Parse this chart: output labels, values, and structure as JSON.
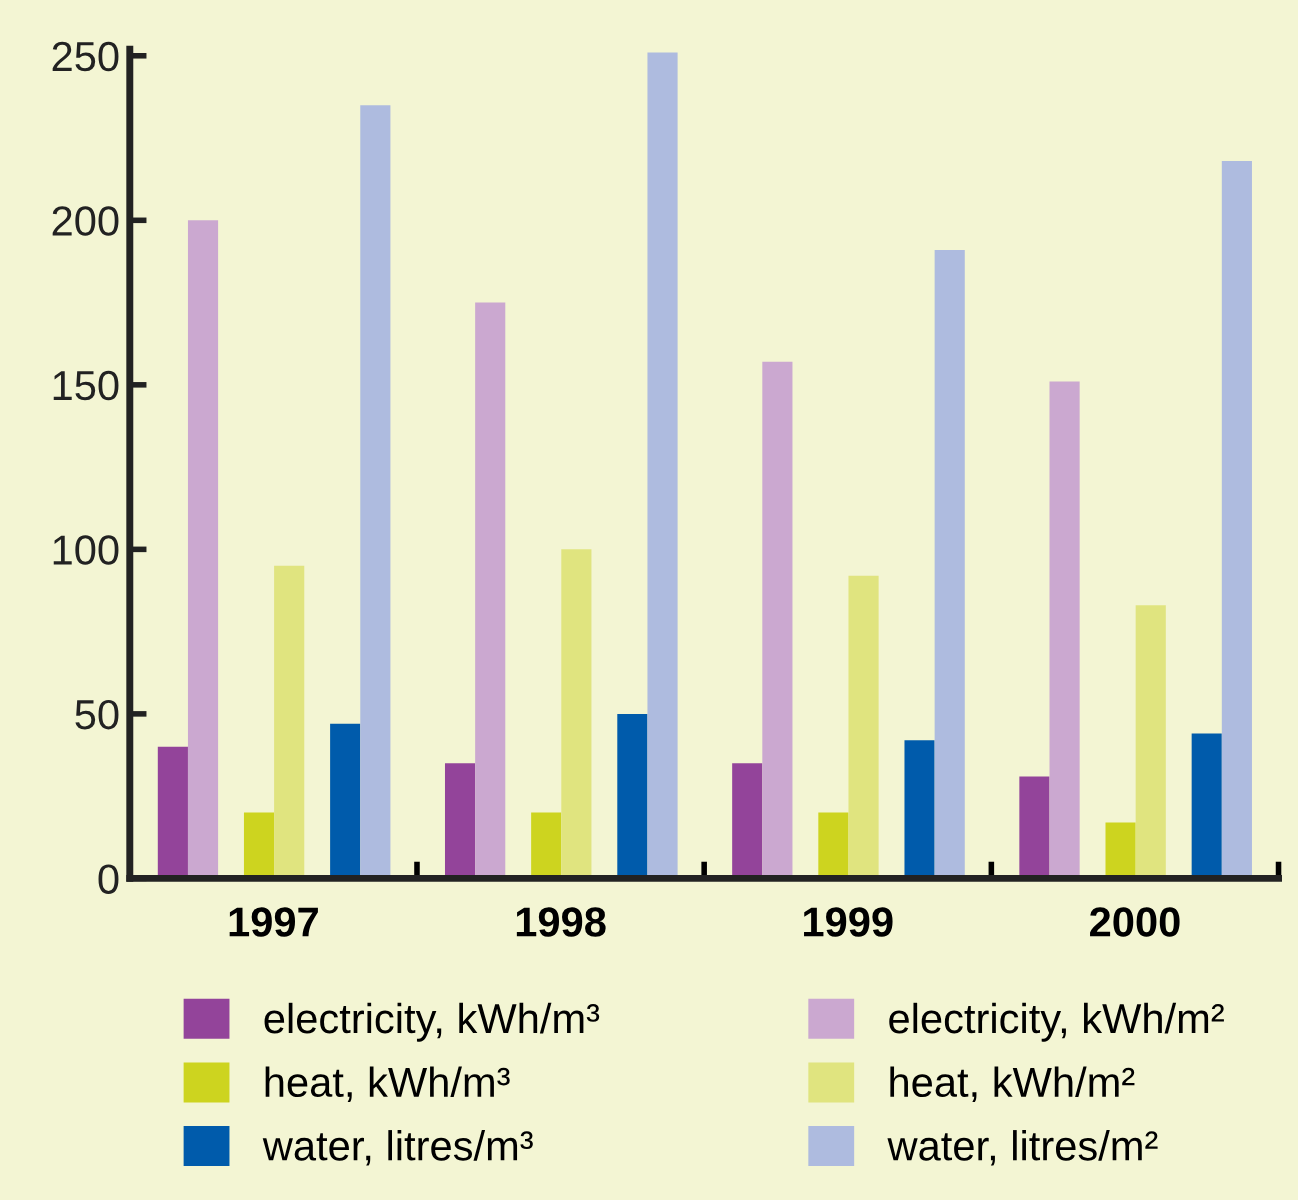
{
  "chart_data": {
    "type": "bar",
    "categories": [
      "1997",
      "1998",
      "1999",
      "2000"
    ],
    "series": [
      {
        "name": "electricity, kWh/m³",
        "color": "#93449a",
        "values": [
          40,
          35,
          35,
          31
        ]
      },
      {
        "name": "electricity, kWh/m²",
        "color": "#cba8d0",
        "values": [
          200,
          175,
          157,
          151
        ]
      },
      {
        "name": "heat, kWh/m³",
        "color": "#cdd41f",
        "values": [
          20,
          20,
          20,
          17
        ]
      },
      {
        "name": "heat, kWh/m²",
        "color": "#e0e47f",
        "values": [
          95,
          100,
          92,
          83
        ]
      },
      {
        "name": "water, litres/m³",
        "color": "#005bab",
        "values": [
          47,
          50,
          42,
          44
        ]
      },
      {
        "name": "water, litres/m²",
        "color": "#aebbdf",
        "values": [
          235,
          251,
          191,
          218
        ]
      }
    ],
    "ylim": [
      0,
      252
    ],
    "yticks": [
      0,
      50,
      100,
      150,
      200,
      250
    ],
    "grid": false,
    "legend": "bottom"
  }
}
